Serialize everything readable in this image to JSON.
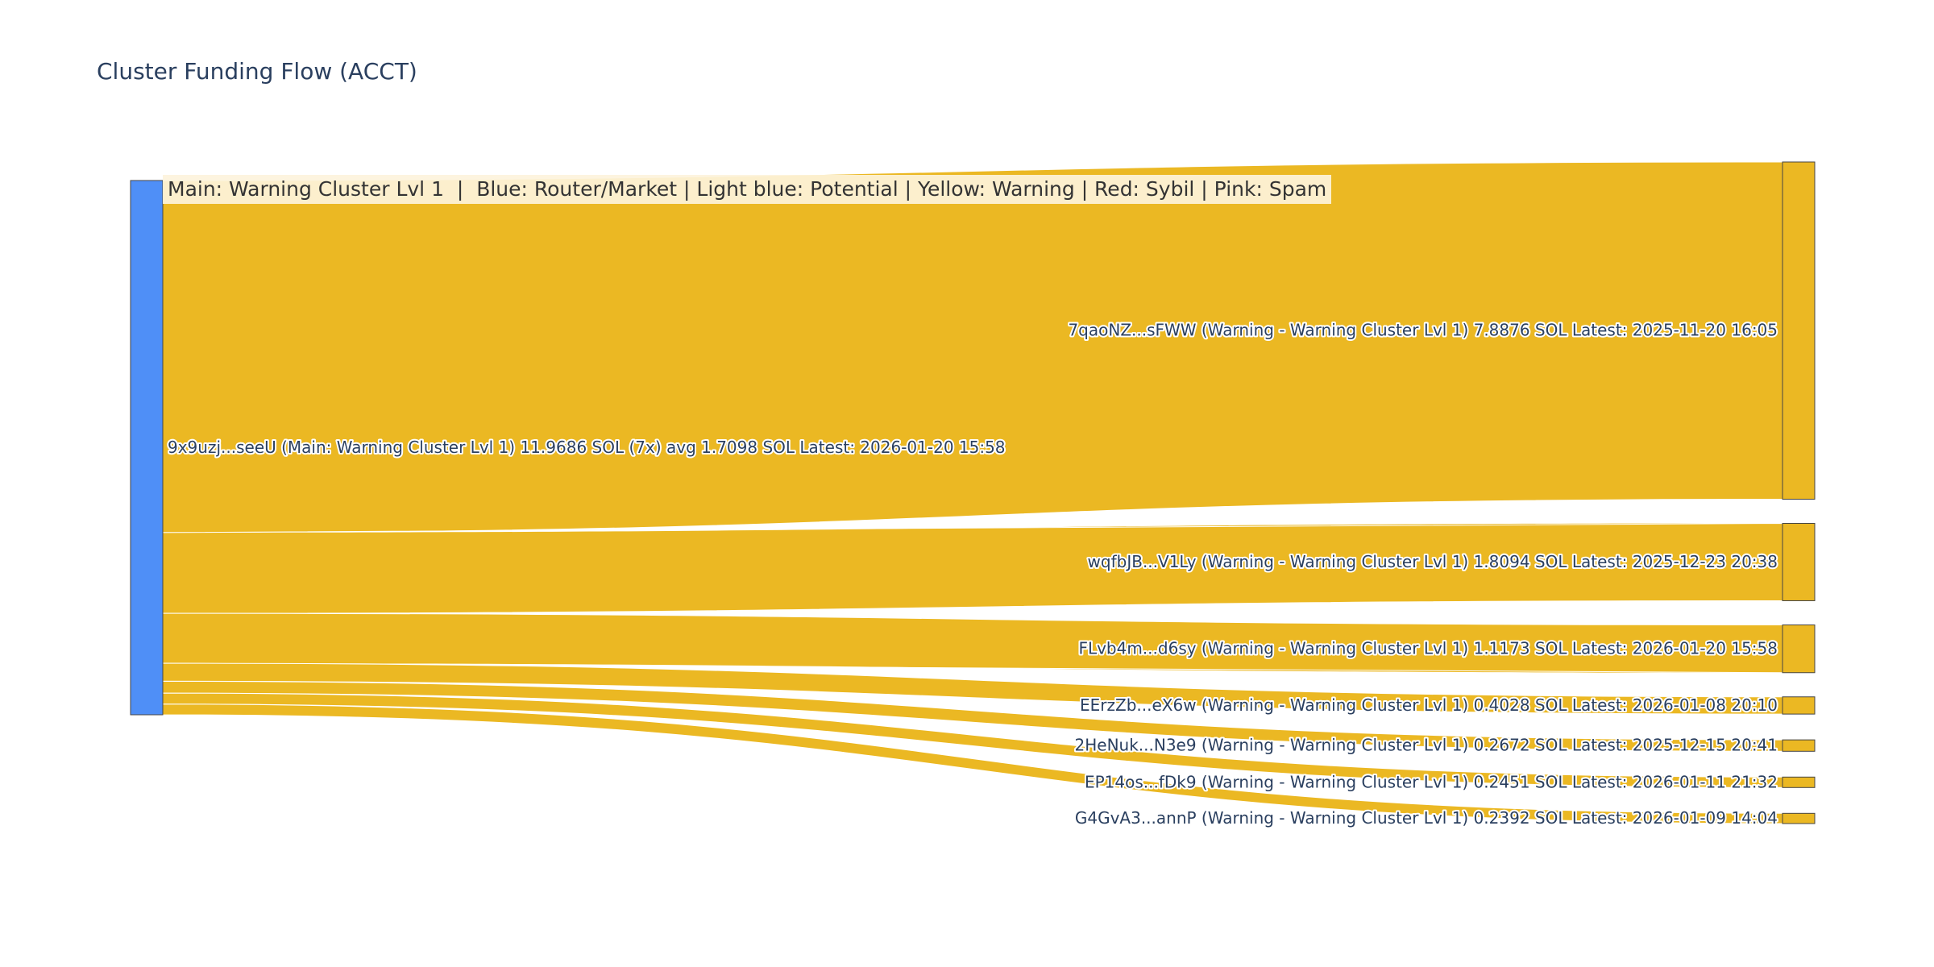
{
  "colors": {
    "source_node": "#4f8ff7",
    "target_node": "#ebb823",
    "link": "#ebb823",
    "node_border": "#444444",
    "text": "#2a3f5f",
    "legend_bg": "#fdf3dc"
  },
  "chart_data": {
    "type": "sankey",
    "title": "Cluster Funding Flow (ACCT)",
    "legend_text": "Main: Warning Cluster Lvl 1  |  Blue: Router/Market | Light blue: Potential | Yellow: Warning | Red: Sybil | Pink: Spam",
    "source": {
      "label": "9x9uzj...seeU (Main: Warning Cluster Lvl 1) 11.9686 SOL (7x) avg 1.7098 SOL Latest: 2026-01-20 15:58",
      "value": 11.9686
    },
    "targets": [
      {
        "label": "7qaoNZ...sFWW (Warning - Warning Cluster Lvl 1) 7.8876 SOL Latest: 2025-11-20 16:05",
        "value": 7.8876
      },
      {
        "label": "wqfbJB...V1Ly (Warning - Warning Cluster Lvl 1) 1.8094 SOL Latest: 2025-12-23 20:38",
        "value": 1.8094
      },
      {
        "label": "FLvb4m...d6sy (Warning - Warning Cluster Lvl 1) 1.1173 SOL Latest: 2026-01-20 15:58",
        "value": 1.1173
      },
      {
        "label": "EErzZb...eX6w (Warning - Warning Cluster Lvl 1) 0.4028 SOL Latest: 2026-01-08 20:10",
        "value": 0.4028
      },
      {
        "label": "2HeNuk...N3e9 (Warning - Warning Cluster Lvl 1) 0.2672 SOL Latest: 2025-12-15 20:41",
        "value": 0.2672
      },
      {
        "label": "EP14os...fDk9 (Warning - Warning Cluster Lvl 1) 0.2451 SOL Latest: 2026-01-11 21:32",
        "value": 0.2451
      },
      {
        "label": "G4GvA3...annP (Warning - Warning Cluster Lvl 1) 0.2392 SOL Latest: 2026-01-09 14:04",
        "value": 0.2392
      }
    ]
  }
}
